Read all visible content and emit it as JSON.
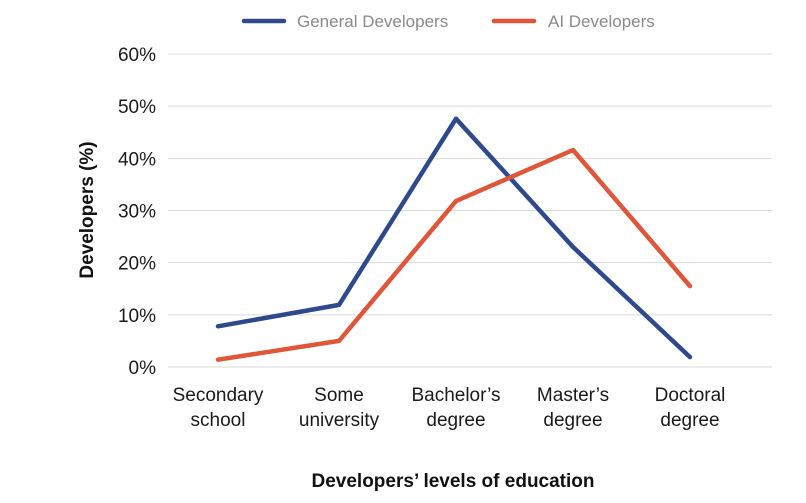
{
  "chart_data": {
    "type": "line",
    "title": "",
    "xlabel": "Developers’ levels of education",
    "ylabel": "Developers (%)",
    "categories": [
      [
        "Secondary",
        "school"
      ],
      [
        "Some",
        "university"
      ],
      [
        "Bachelor’s",
        "degree"
      ],
      [
        "Master’s",
        "degree"
      ],
      [
        "Doctoral",
        "degree"
      ]
    ],
    "ylim": [
      0,
      60
    ],
    "yticks": [
      0,
      10,
      20,
      30,
      40,
      50,
      60
    ],
    "ytick_labels": [
      "0%",
      "10%",
      "20%",
      "30%",
      "40%",
      "50%",
      "60%"
    ],
    "grid": true,
    "legend_position": "top",
    "series": [
      {
        "name": "General Developers",
        "color": "#2e4a8c",
        "values": [
          7.8,
          11.9,
          47.6,
          23.0,
          1.9
        ]
      },
      {
        "name": "AI Developers",
        "color": "#e0563a",
        "values": [
          1.4,
          5.0,
          31.8,
          41.6,
          15.5
        ]
      }
    ]
  }
}
